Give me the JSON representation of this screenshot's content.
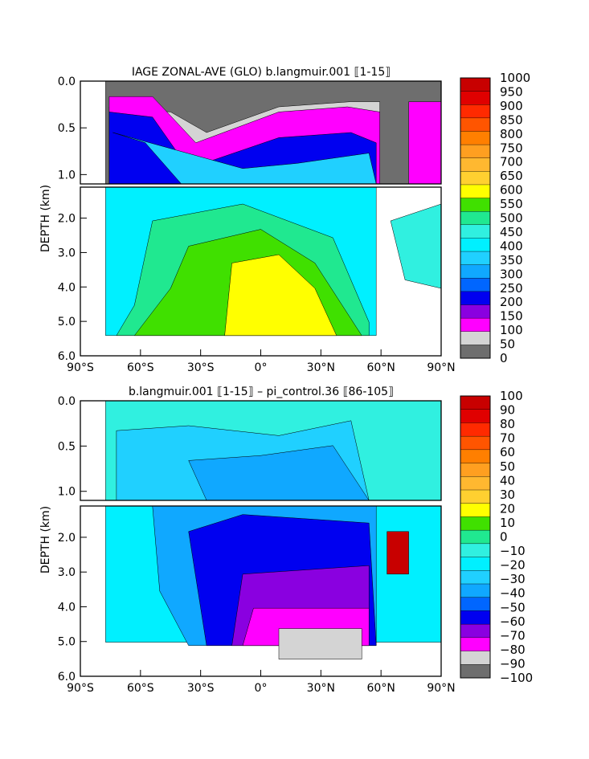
{
  "chart_data": [
    {
      "type": "contour",
      "title": "IAGE ZONAL-AVE (GLO) b.langmuir.001 ⟦1-15⟧",
      "ylabel": "DEPTH (km)",
      "x_ticks": [
        "90°S",
        "60°S",
        "30°S",
        "0°",
        "30°N",
        "60°N",
        "90°N"
      ],
      "xlim": [
        -90,
        90
      ],
      "y_ticks_upper": [
        "0.0",
        "0.5",
        "1.0"
      ],
      "y_ticks_lower": [
        "2.0",
        "3.0",
        "4.0",
        "5.0",
        "6.0"
      ],
      "ylim_km": [
        0,
        6
      ],
      "colorbar": {
        "labels": [
          "1000",
          "950",
          "900",
          "850",
          "800",
          "750",
          "700",
          "650",
          "600",
          "550",
          "500",
          "450",
          "400",
          "350",
          "300",
          "250",
          "200",
          "150",
          "100",
          "50",
          "0"
        ],
        "colors": [
          "#c80000",
          "#e00000",
          "#ff2a00",
          "#ff5500",
          "#ff7f00",
          "#ff9f20",
          "#ffb830",
          "#ffd030",
          "#ffff00",
          "#40e000",
          "#20e890",
          "#30f0e0",
          "#00f0ff",
          "#20d0ff",
          "#10a8ff",
          "#0066ff",
          "#0000f0",
          "#8a00e0",
          "#ff00ff",
          "#d4d4d4",
          "#6e6e6e"
        ]
      }
    },
    {
      "type": "contour",
      "title": "b.langmuir.001 ⟦1-15⟧ – pi_control.36 ⟦86-105⟧",
      "ylabel": "DEPTH (km)",
      "x_ticks": [
        "90°S",
        "60°S",
        "30°S",
        "0°",
        "30°N",
        "60°N",
        "90°N"
      ],
      "xlim": [
        -90,
        90
      ],
      "y_ticks_upper": [
        "0.0",
        "0.5",
        "1.0"
      ],
      "y_ticks_lower": [
        "2.0",
        "3.0",
        "4.0",
        "5.0",
        "6.0"
      ],
      "ylim_km": [
        0,
        6
      ],
      "colorbar": {
        "labels": [
          "100",
          "90",
          "80",
          "70",
          "60",
          "50",
          "40",
          "30",
          "20",
          "10",
          "0",
          "−10",
          "−20",
          "−30",
          "−40",
          "−50",
          "−60",
          "−70",
          "−80",
          "−90",
          "−100"
        ],
        "colors": [
          "#c80000",
          "#e00000",
          "#ff2a00",
          "#ff5500",
          "#ff7f00",
          "#ff9f20",
          "#ffb830",
          "#ffd030",
          "#ffff00",
          "#40e000",
          "#20e890",
          "#30f0e0",
          "#00f0ff",
          "#20d0ff",
          "#10a8ff",
          "#0066ff",
          "#0000f0",
          "#8a00e0",
          "#ff00ff",
          "#d4d4d4",
          "#6e6e6e"
        ]
      }
    }
  ]
}
